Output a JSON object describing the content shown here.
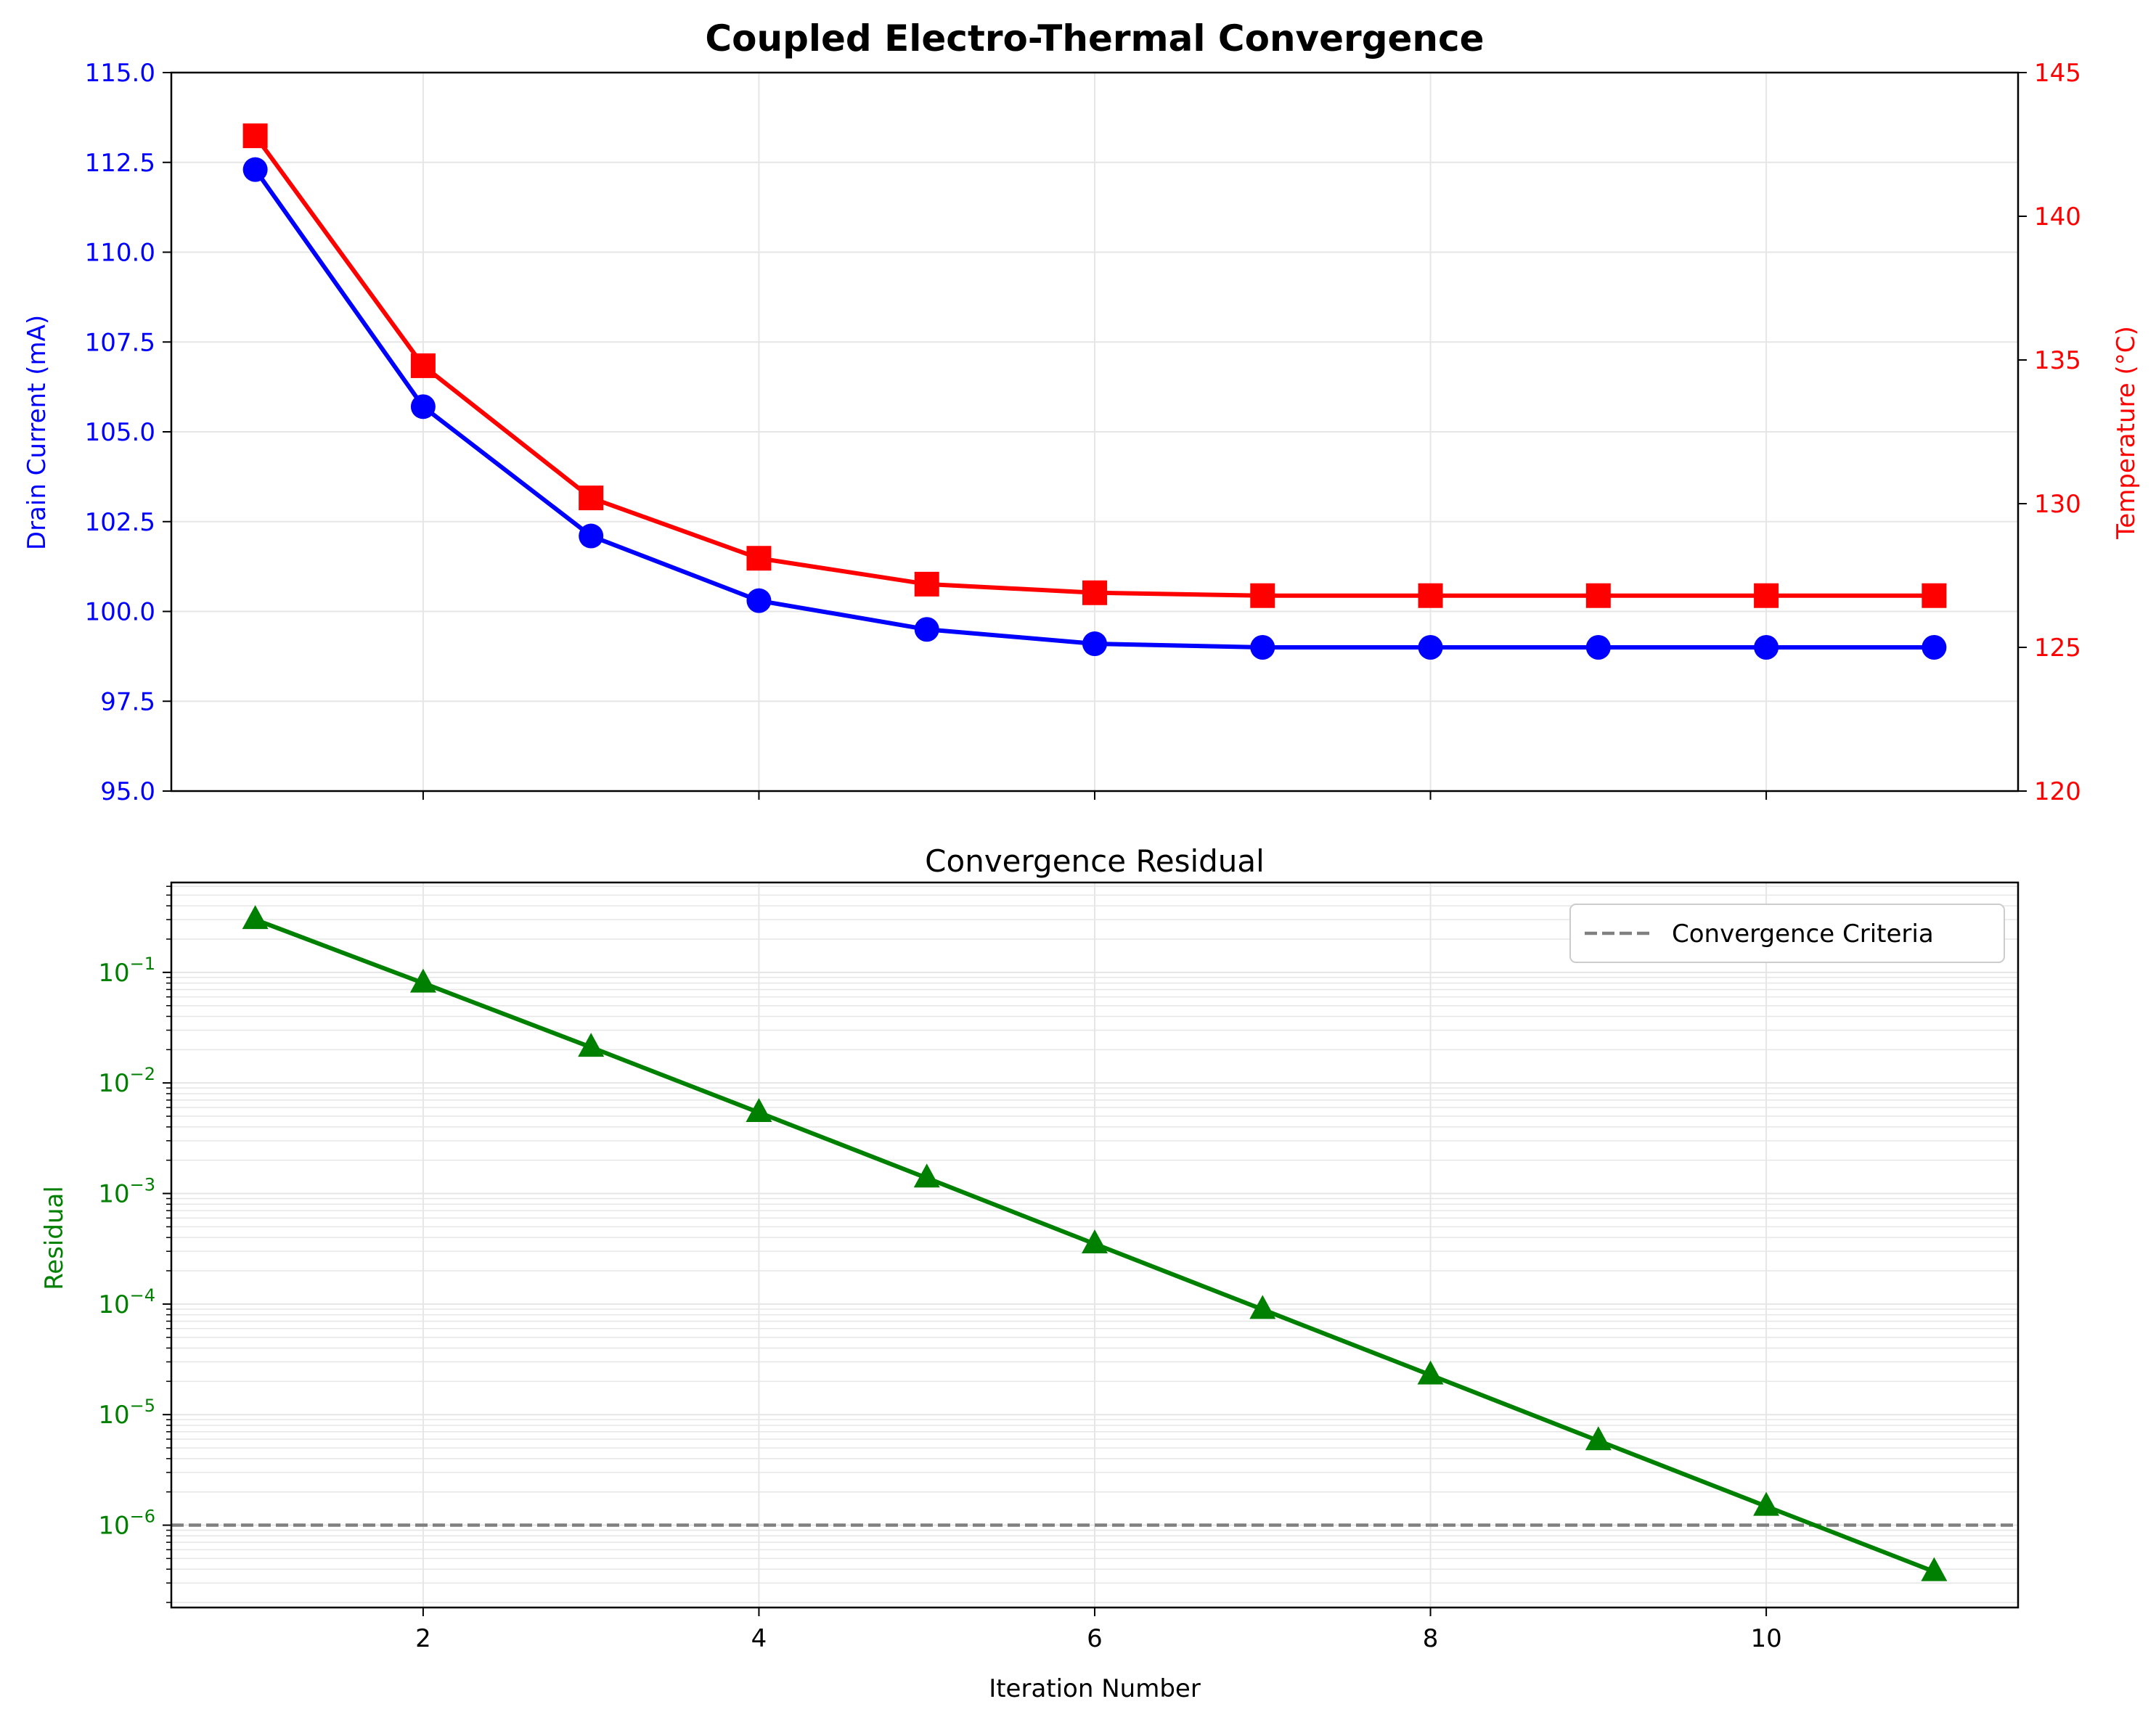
{
  "colors": {
    "current": "#0000ff",
    "temperature": "#ff0000",
    "residual": "#008000",
    "criteria": "#808080",
    "grid": "#e6e6e6",
    "axis": "#000000"
  },
  "chart_data": [
    {
      "type": "line",
      "title": "Coupled Electro-Thermal Convergence",
      "xlabel": "",
      "ylabel": "Drain Current (mA)",
      "ylabel_right": "Temperature (°C)",
      "x": [
        1,
        2,
        3,
        4,
        5,
        6,
        7,
        8,
        9,
        10,
        11
      ],
      "xlim": [
        0.5,
        11.5
      ],
      "ylim": [
        95.0,
        115.0
      ],
      "ylim_right": [
        120,
        145
      ],
      "yticks": [
        "95.0",
        "97.5",
        "100.0",
        "102.5",
        "105.0",
        "107.5",
        "110.0",
        "112.5",
        "115.0"
      ],
      "yticks_right": [
        "120",
        "125",
        "130",
        "135",
        "140",
        "145"
      ],
      "grid": true,
      "series": [
        {
          "values": [
            112.3,
            105.7,
            102.1,
            100.3,
            99.5,
            99.1,
            99.0,
            99.0,
            99.0,
            99.0,
            99.0
          ],
          "axis": "left",
          "marker": "circle",
          "color": "#0000ff"
        },
        {
          "values": [
            142.8,
            134.8,
            130.2,
            128.1,
            127.2,
            126.9,
            126.8,
            126.8,
            126.8,
            126.8,
            126.8
          ],
          "axis": "right",
          "marker": "square",
          "color": "#ff0000"
        }
      ]
    },
    {
      "type": "line",
      "title": "Convergence Residual",
      "xlabel": "Iteration Number",
      "ylabel": "Residual",
      "yscale": "log",
      "x": [
        1,
        2,
        3,
        4,
        5,
        6,
        7,
        8,
        9,
        10,
        11
      ],
      "xlim": [
        0.5,
        11.5
      ],
      "ylim": [
        1.8e-07,
        0.65
      ],
      "xticks": [
        "2",
        "4",
        "6",
        "8",
        "10"
      ],
      "ytick_exponents": [
        "−1",
        "−2",
        "−3",
        "−4",
        "−5",
        "−6"
      ],
      "ytick_base": "10",
      "grid": true,
      "legend": "top-right",
      "series": [
        {
          "values": [
            0.3,
            0.08,
            0.021,
            0.0054,
            0.00138,
            0.00035,
            8.93e-05,
            2.28e-05,
            5.8e-06,
            1.48e-06,
            3.8e-07
          ],
          "marker": "triangle",
          "color": "#008000"
        }
      ],
      "reference_line": {
        "name": "Convergence Criteria",
        "value": 1e-06,
        "style": "dashed",
        "color": "#808080"
      }
    }
  ]
}
